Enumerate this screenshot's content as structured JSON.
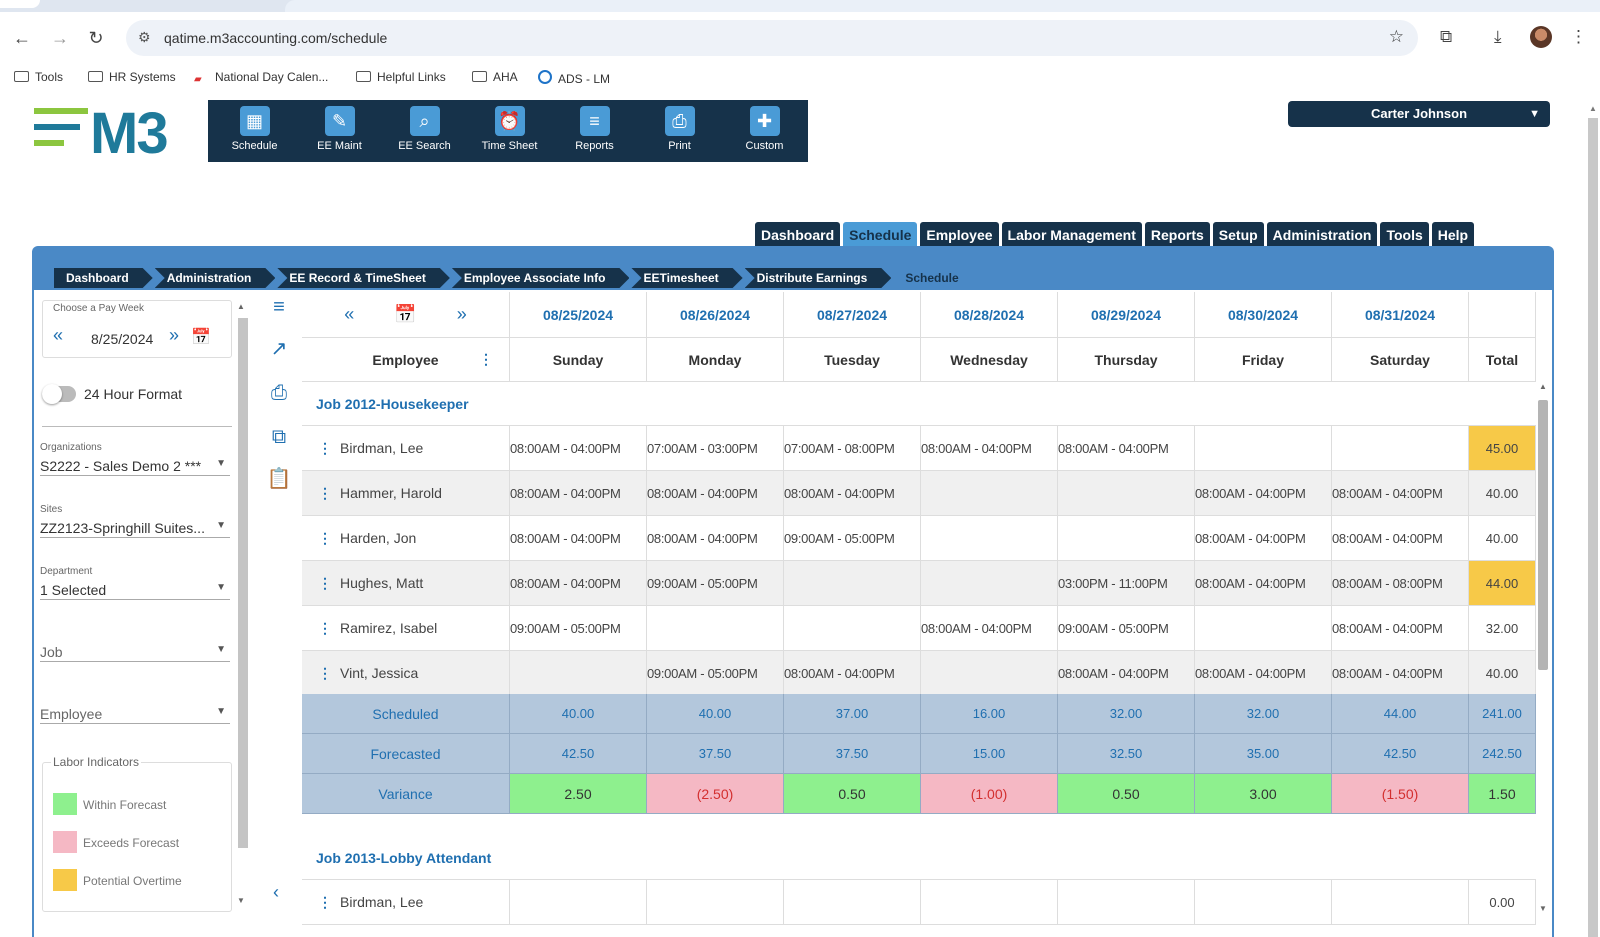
{
  "browser": {
    "url": "qatime.m3accounting.com/schedule",
    "bookmarks": [
      "Tools",
      "HR Systems",
      "National Day Calen...",
      "Helpful Links",
      "AHA",
      "ADS - LM"
    ]
  },
  "app": {
    "logo_text": "M3",
    "toolbar": [
      "Schedule",
      "EE Maint",
      "EE Search",
      "Time Sheet",
      "Reports",
      "Print",
      "Custom"
    ],
    "user": "Carter Johnson",
    "main_tabs": [
      "Dashboard",
      "Schedule",
      "Employee",
      "Labor Management",
      "Reports",
      "Setup",
      "Administration",
      "Tools",
      "Help"
    ],
    "active_tab": "Schedule",
    "breadcrumbs": [
      "Dashboard",
      "Administration",
      "EE Record & TimeSheet",
      "Employee Associate Info",
      "EETimesheet",
      "Distribute Earnings",
      "Schedule"
    ]
  },
  "filters": {
    "pay_week_label": "Choose a Pay Week",
    "pay_week": "8/25/2024",
    "hour_format_label": "24 Hour Format",
    "organization_label": "Organizations",
    "organization": "S2222 - Sales Demo 2 ***",
    "sites_label": "Sites",
    "site": "ZZ2123-Springhill Suites...",
    "department_label": "Department",
    "department": "1 Selected",
    "job_placeholder": "Job",
    "employee_placeholder": "Employee",
    "labor_indicators_label": "Labor Indicators",
    "indicators": [
      {
        "label": "Within Forecast",
        "color": "#8ef08e"
      },
      {
        "label": "Exceeds Forecast",
        "color": "#f5b8c4"
      },
      {
        "label": "Potential Overtime",
        "color": "#f7c948"
      }
    ]
  },
  "schedule": {
    "dates": [
      "08/25/2024",
      "08/26/2024",
      "08/27/2024",
      "08/28/2024",
      "08/29/2024",
      "08/30/2024",
      "08/31/2024"
    ],
    "employee_header": "Employee",
    "days": [
      "Sunday",
      "Monday",
      "Tuesday",
      "Wednesday",
      "Thursday",
      "Friday",
      "Saturday"
    ],
    "total_header": "Total",
    "job1": "Job 2012-Housekeeper",
    "employees": [
      {
        "name": "Birdman, Lee",
        "shifts": [
          "08:00AM  -  04:00PM",
          "07:00AM  -  03:00PM",
          "07:00AM  -  08:00PM",
          "08:00AM  -  04:00PM",
          "08:00AM  -  04:00PM",
          "",
          ""
        ],
        "total": "45.00",
        "overtime": true
      },
      {
        "name": "Hammer, Harold",
        "shifts": [
          "08:00AM  -  04:00PM",
          "08:00AM  -  04:00PM",
          "08:00AM  -  04:00PM",
          "",
          "",
          "08:00AM  -  04:00PM",
          "08:00AM  -  04:00PM"
        ],
        "total": "40.00",
        "overtime": false
      },
      {
        "name": "Harden, Jon",
        "shifts": [
          "08:00AM  -  04:00PM",
          "08:00AM  -  04:00PM",
          "09:00AM  -  05:00PM",
          "",
          "",
          "08:00AM  -  04:00PM",
          "08:00AM  -  04:00PM"
        ],
        "total": "40.00",
        "overtime": false
      },
      {
        "name": "Hughes, Matt",
        "shifts": [
          "08:00AM  -  04:00PM",
          "09:00AM  -  05:00PM",
          "",
          "",
          "03:00PM  -  11:00PM",
          "08:00AM  -  04:00PM",
          "08:00AM  -  08:00PM"
        ],
        "total": "44.00",
        "overtime": true
      },
      {
        "name": "Ramirez, Isabel",
        "shifts": [
          "09:00AM  -  05:00PM",
          "",
          "",
          "08:00AM  -  04:00PM",
          "09:00AM  -  05:00PM",
          "",
          "08:00AM  -  04:00PM"
        ],
        "total": "32.00",
        "overtime": false
      },
      {
        "name": "Vint, Jessica",
        "shifts": [
          "",
          "09:00AM  -  05:00PM",
          "08:00AM  -  04:00PM",
          "",
          "08:00AM  -  04:00PM",
          "08:00AM  -  04:00PM",
          "08:00AM  -  04:00PM"
        ],
        "total": "40.00",
        "overtime": false
      }
    ],
    "scheduled_label": "Scheduled",
    "scheduled": [
      "40.00",
      "40.00",
      "37.00",
      "16.00",
      "32.00",
      "32.00",
      "44.00",
      "241.00"
    ],
    "forecasted_label": "Forecasted",
    "forecasted": [
      "42.50",
      "37.50",
      "37.50",
      "15.00",
      "32.50",
      "35.00",
      "42.50",
      "242.50"
    ],
    "variance_label": "Variance",
    "variance": [
      "2.50",
      "(2.50)",
      "0.50",
      "(1.00)",
      "0.50",
      "3.00",
      "(1.50)",
      "1.50"
    ],
    "variance_status": [
      "ok",
      "bad",
      "ok",
      "bad",
      "ok",
      "ok",
      "bad",
      "ok"
    ],
    "job2": "Job 2013-Lobby Attendant",
    "job2_employees": [
      {
        "name": "Birdman, Lee",
        "total": "0.00"
      }
    ]
  }
}
